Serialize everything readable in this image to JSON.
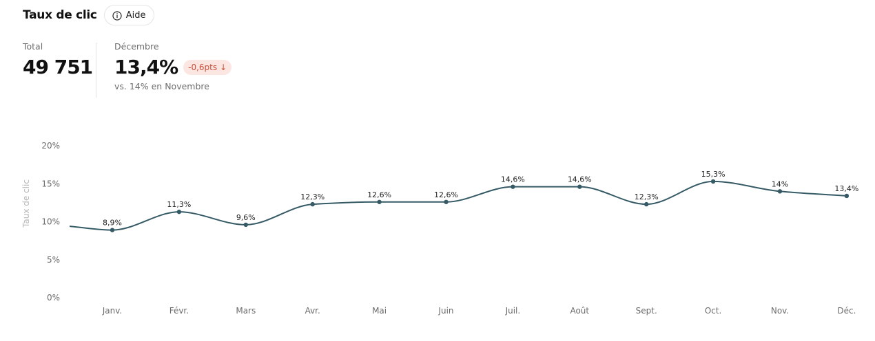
{
  "header": {
    "title": "Taux de clic",
    "help_label": "Aide"
  },
  "kpis": {
    "total_label": "Total",
    "total_value": "49 751",
    "month_label": "Décembre",
    "month_value": "13,4%",
    "delta": "-0,6pts",
    "delta_arrow": "↓",
    "comparison": "vs. 14% en Novembre"
  },
  "colors": {
    "line": "#355a66",
    "delta_bg": "#fbe6e2",
    "delta_text": "#c8503a"
  },
  "chart_data": {
    "type": "line",
    "title": "",
    "xlabel": "",
    "ylabel": "Taux de clic",
    "categories": [
      "Janv.",
      "Févr.",
      "Mars",
      "Avr.",
      "Mai",
      "Juin",
      "Juil.",
      "Août",
      "Sept.",
      "Oct.",
      "Nov.",
      "Déc."
    ],
    "series": [
      {
        "values": [
          8.9,
          11.3,
          9.6,
          12.3,
          12.6,
          12.6,
          14.6,
          14.6,
          12.3,
          15.3,
          14.0,
          13.4
        ]
      }
    ],
    "data_labels": [
      "8,9%",
      "11,3%",
      "9,6%",
      "12,3%",
      "12,6%",
      "12,6%",
      "14,6%",
      "14,6%",
      "12,3%",
      "15,3%",
      "14%",
      "13,4%"
    ],
    "y_ticks": [
      0,
      5,
      10,
      15,
      20
    ],
    "y_tick_labels": [
      "0%",
      "5%",
      "10%",
      "15%",
      "20%"
    ],
    "ylim": [
      0,
      20
    ],
    "grid": false,
    "legend": "none"
  }
}
